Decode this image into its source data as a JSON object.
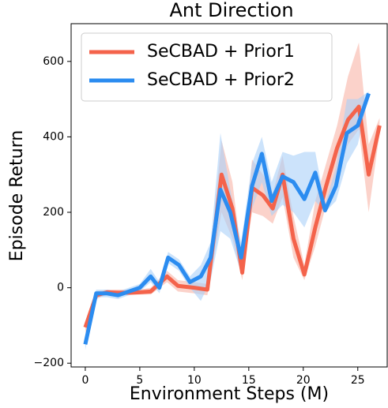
{
  "chart_data": {
    "type": "line",
    "title": "Ant Direction",
    "x_label": "Environment Steps (M)",
    "y_label": "Episode Return",
    "xlim": [
      -1.3,
      27.7
    ],
    "ylim": [
      -210,
      700
    ],
    "xticks": [
      0,
      5,
      10,
      15,
      20,
      25
    ],
    "yticks": [
      {
        "value": -200,
        "label": "−200"
      },
      0,
      200,
      400,
      600
    ],
    "legend": "upper left",
    "series": [
      {
        "name": "SeCBAD + Prior1",
        "color": "#f4634b",
        "band_color": "#f9b4a7",
        "x": [
          0,
          1,
          2,
          3,
          4,
          5,
          6,
          7.5,
          8.5,
          10,
          11.2,
          12.5,
          13.5,
          14.4,
          15.3,
          16.3,
          17.2,
          18.1,
          19.1,
          20.1,
          21.1,
          22.1,
          23.1,
          24.1,
          25.1,
          26,
          27
        ],
        "values": [
          -105,
          -20,
          -12,
          -13,
          -13,
          -12,
          -10,
          30,
          5,
          0,
          -5,
          300,
          210,
          40,
          265,
          245,
          210,
          300,
          130,
          35,
          160,
          270,
          370,
          445,
          480,
          300,
          430
        ],
        "lower": [
          -120,
          -30,
          -18,
          -20,
          -20,
          -18,
          -18,
          15,
          -10,
          -15,
          -20,
          200,
          130,
          20,
          200,
          190,
          170,
          240,
          80,
          20,
          110,
          220,
          300,
          380,
          420,
          200,
          410
        ],
        "upper": [
          -90,
          -10,
          -5,
          -5,
          -5,
          -5,
          0,
          45,
          20,
          15,
          10,
          390,
          280,
          70,
          340,
          300,
          250,
          350,
          190,
          60,
          230,
          330,
          430,
          560,
          650,
          380,
          450
        ]
      },
      {
        "name": "SeCBAD + Prior2",
        "color": "#2b8cf0",
        "band_color": "#aad0f9",
        "x": [
          0,
          1,
          2,
          3,
          4,
          5,
          6,
          6.8,
          7.6,
          8.6,
          9.6,
          10.6,
          11.5,
          12.4,
          13.3,
          14.3,
          15.3,
          16.2,
          17.1,
          18.1,
          19.1,
          20.1,
          21.1,
          22,
          23,
          24,
          25,
          26
        ],
        "values": [
          -150,
          -15,
          -15,
          -20,
          -10,
          0,
          30,
          0,
          80,
          60,
          15,
          30,
          80,
          260,
          200,
          80,
          270,
          355,
          230,
          295,
          280,
          235,
          305,
          205,
          270,
          410,
          430,
          515
        ],
        "lower": [
          -165,
          -25,
          -25,
          -30,
          -20,
          -10,
          15,
          -15,
          65,
          45,
          0,
          -35,
          20,
          150,
          130,
          40,
          210,
          280,
          190,
          220,
          200,
          160,
          230,
          200,
          230,
          330,
          380,
          510
        ],
        "upper": [
          -135,
          -5,
          -5,
          -10,
          0,
          10,
          50,
          15,
          95,
          75,
          30,
          60,
          120,
          410,
          260,
          120,
          330,
          400,
          280,
          360,
          350,
          360,
          360,
          220,
          320,
          500,
          500,
          520
        ]
      }
    ]
  }
}
